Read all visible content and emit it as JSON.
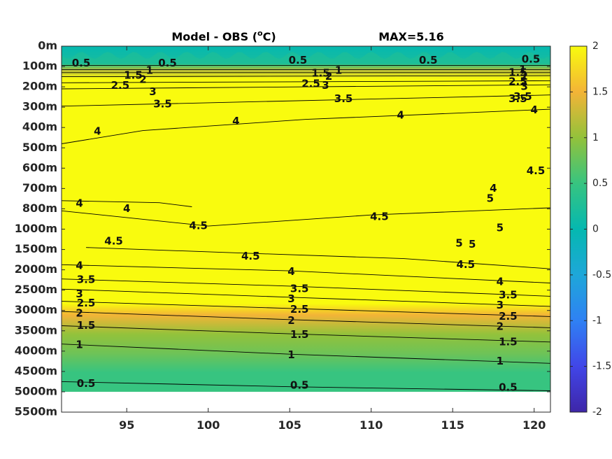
{
  "chart_data": {
    "type": "heatmap",
    "title": "Model - OBS (°C)",
    "title_parts": {
      "base": "Model - OBS (",
      "sup": "o",
      "unit": "C)"
    },
    "max_label": "MAX=5.16",
    "x_ticks": [
      95,
      100,
      105,
      110,
      115,
      120
    ],
    "xlim": [
      91,
      121
    ],
    "y_ticks": [
      "0m",
      "100m",
      "200m",
      "300m",
      "400m",
      "500m",
      "600m",
      "700m",
      "800m",
      "1000m",
      "1500m",
      "2000m",
      "2500m",
      "3000m",
      "3500m",
      "4000m",
      "4500m",
      "5000m",
      "5500m"
    ],
    "y_reversed": true,
    "colorbar": {
      "ticks": [
        "2",
        "1.5",
        "1",
        "0.5",
        "0",
        "-0.5",
        "-1",
        "-1.5",
        "-2"
      ],
      "range": [
        -2,
        2
      ],
      "colormap": "parula",
      "stops": [
        [
          "#3e26a8",
          -2.0
        ],
        [
          "#4146e8",
          -1.5
        ],
        [
          "#2f81f4",
          -1.0
        ],
        [
          "#1ea7d9",
          -0.5
        ],
        [
          "#05b8b0",
          0.0
        ],
        [
          "#37c480",
          0.5
        ],
        [
          "#93c23b",
          1.0
        ],
        [
          "#f3b437",
          1.5
        ],
        [
          "#f9fb0e",
          2.0
        ]
      ]
    },
    "field": {
      "surface_band": {
        "depth_range": [
          "0m",
          "100m"
        ],
        "value_range": [
          0,
          1
        ]
      },
      "interior_value": "above 2",
      "deep_gradient": [
        [
          "3500m",
          1.5
        ],
        [
          "4000m",
          1.0
        ],
        [
          "4500m",
          0.8
        ],
        [
          "5000m",
          0.5
        ]
      ],
      "no_data_below": "5000m"
    },
    "contour_levels": [
      0.5,
      1,
      1.5,
      2,
      2.5,
      3,
      3.5,
      4,
      4.5,
      5
    ],
    "contour_labels": [
      {
        "text": "0.5",
        "x": 92.2,
        "y": 0.85
      },
      {
        "text": "0.5",
        "x": 97.5,
        "y": 0.85
      },
      {
        "text": "0.5",
        "x": 105.5,
        "y": 0.7
      },
      {
        "text": "0.5",
        "x": 113.5,
        "y": 0.7
      },
      {
        "text": "0.5",
        "x": 119.8,
        "y": 0.65
      },
      {
        "text": "1",
        "x": 96.4,
        "y": 1.2
      },
      {
        "text": "1.5",
        "x": 95.4,
        "y": 1.45
      },
      {
        "text": "2",
        "x": 96.0,
        "y": 1.65
      },
      {
        "text": "2.5",
        "x": 94.6,
        "y": 1.95
      },
      {
        "text": "3",
        "x": 96.6,
        "y": 2.25
      },
      {
        "text": "3.5",
        "x": 97.2,
        "y": 2.85
      },
      {
        "text": "1.5",
        "x": 106.9,
        "y": 1.35
      },
      {
        "text": "1",
        "x": 108.0,
        "y": 1.2
      },
      {
        "text": "2",
        "x": 107.4,
        "y": 1.5
      },
      {
        "text": "2.5",
        "x": 106.3,
        "y": 1.85
      },
      {
        "text": "3",
        "x": 107.2,
        "y": 1.95
      },
      {
        "text": "3.5",
        "x": 108.3,
        "y": 2.6
      },
      {
        "text": "1.5",
        "x": 119.0,
        "y": 1.3
      },
      {
        "text": "1",
        "x": 119.3,
        "y": 1.15
      },
      {
        "text": "2",
        "x": 119.4,
        "y": 1.5
      },
      {
        "text": "2.5",
        "x": 119.0,
        "y": 1.75
      },
      {
        "text": "3",
        "x": 119.4,
        "y": 2.0
      },
      {
        "text": "3.5",
        "x": 119.3,
        "y": 2.5
      },
      {
        "text": "3.5",
        "x": 119.0,
        "y": 2.6
      },
      {
        "text": "4",
        "x": 93.2,
        "y": 4.2
      },
      {
        "text": "4",
        "x": 101.7,
        "y": 3.7
      },
      {
        "text": "4",
        "x": 111.8,
        "y": 3.4
      },
      {
        "text": "4",
        "x": 120.0,
        "y": 3.15
      },
      {
        "text": "4.5",
        "x": 120.1,
        "y": 6.15
      },
      {
        "text": "4",
        "x": 117.5,
        "y": 7.0
      },
      {
        "text": "5",
        "x": 117.3,
        "y": 7.5
      },
      {
        "text": "4",
        "x": 92.1,
        "y": 7.75
      },
      {
        "text": "4",
        "x": 95.0,
        "y": 8.0
      },
      {
        "text": "4.5",
        "x": 99.4,
        "y": 8.85
      },
      {
        "text": "4.5",
        "x": 110.5,
        "y": 8.4
      },
      {
        "text": "5",
        "x": 117.9,
        "y": 8.95
      },
      {
        "text": "4.5",
        "x": 94.2,
        "y": 9.6
      },
      {
        "text": "5",
        "x": 115.4,
        "y": 9.7
      },
      {
        "text": "5",
        "x": 116.2,
        "y": 9.75
      },
      {
        "text": "4.5",
        "x": 102.6,
        "y": 10.35
      },
      {
        "text": "4.5",
        "x": 115.8,
        "y": 10.75
      },
      {
        "text": "4",
        "x": 92.1,
        "y": 10.8
      },
      {
        "text": "4",
        "x": 105.1,
        "y": 11.1
      },
      {
        "text": "4",
        "x": 117.9,
        "y": 11.6
      },
      {
        "text": "3.5",
        "x": 92.5,
        "y": 11.5
      },
      {
        "text": "3.5",
        "x": 105.6,
        "y": 11.95
      },
      {
        "text": "3.5",
        "x": 118.4,
        "y": 12.25
      },
      {
        "text": "3",
        "x": 92.1,
        "y": 12.2
      },
      {
        "text": "3",
        "x": 105.1,
        "y": 12.45
      },
      {
        "text": "3",
        "x": 117.9,
        "y": 12.75
      },
      {
        "text": "2.5",
        "x": 92.5,
        "y": 12.65
      },
      {
        "text": "2.5",
        "x": 105.6,
        "y": 12.95
      },
      {
        "text": "2.5",
        "x": 118.4,
        "y": 13.3
      },
      {
        "text": "2",
        "x": 92.1,
        "y": 13.15
      },
      {
        "text": "2",
        "x": 105.1,
        "y": 13.5
      },
      {
        "text": "2",
        "x": 117.9,
        "y": 13.8
      },
      {
        "text": "1.5",
        "x": 92.5,
        "y": 13.75
      },
      {
        "text": "1.5",
        "x": 105.6,
        "y": 14.2
      },
      {
        "text": "1.5",
        "x": 118.4,
        "y": 14.55
      },
      {
        "text": "1",
        "x": 92.1,
        "y": 14.7
      },
      {
        "text": "1",
        "x": 105.1,
        "y": 15.2
      },
      {
        "text": "1",
        "x": 117.9,
        "y": 15.5
      },
      {
        "text": "0.5",
        "x": 92.5,
        "y": 16.6
      },
      {
        "text": "0.5",
        "x": 105.6,
        "y": 16.7
      },
      {
        "text": "0.5",
        "x": 118.4,
        "y": 16.8
      }
    ]
  }
}
